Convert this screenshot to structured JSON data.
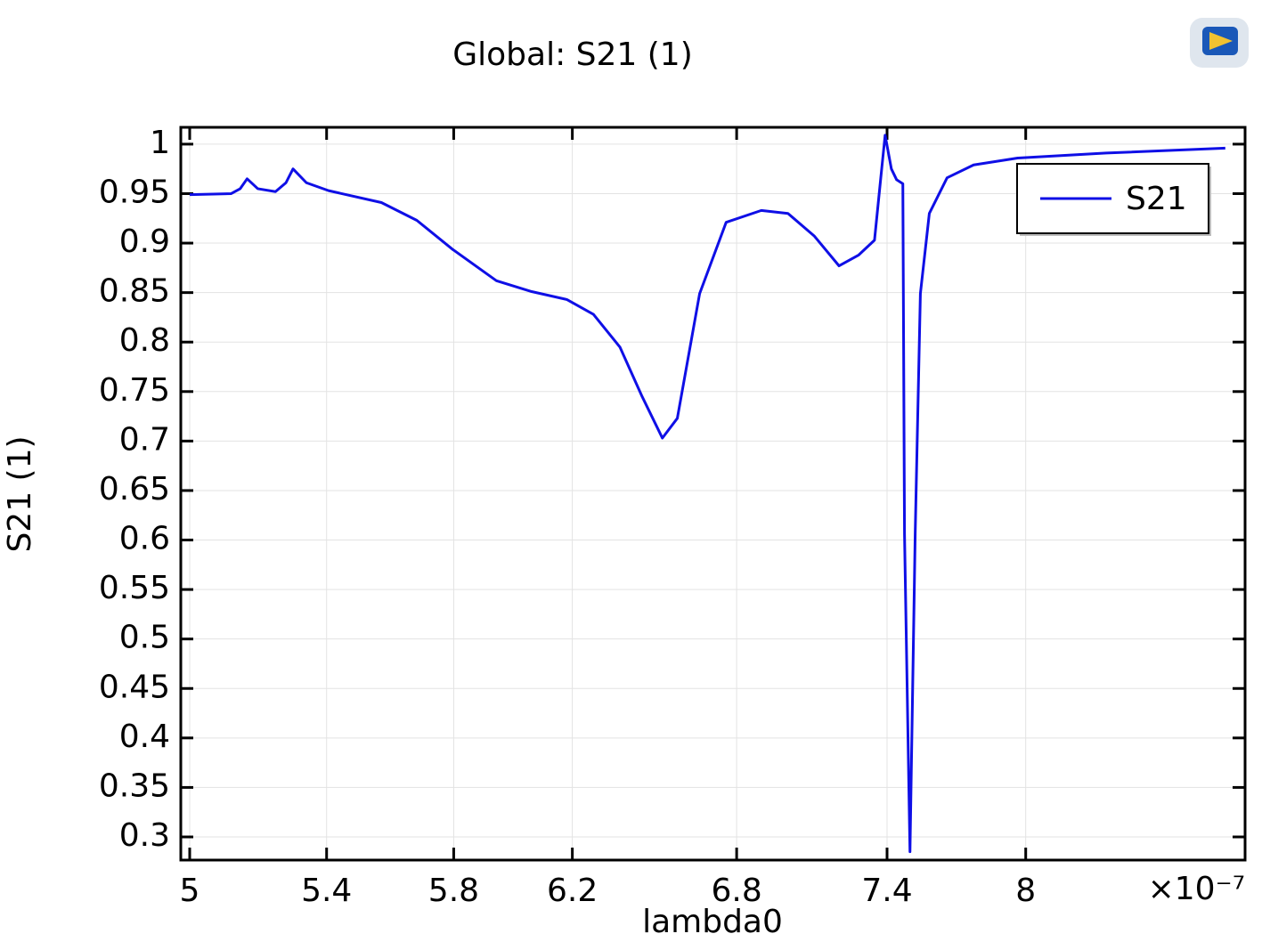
{
  "chart_data": {
    "type": "line",
    "title": "Global: S21 (1)",
    "x_label": "lambda0",
    "y_label": "S21 (1)",
    "x_multiplier": "×10⁻⁷",
    "xscale": "log",
    "grid": true,
    "legend": "upper right",
    "x": [
      5e-07,
      5.118e-07,
      5.144e-07,
      5.164e-07,
      5.195e-07,
      5.247e-07,
      5.278e-07,
      5.299e-07,
      5.339e-07,
      5.406e-07,
      5.569e-07,
      5.681e-07,
      5.795e-07,
      5.941e-07,
      6.06e-07,
      6.181e-07,
      6.274e-07,
      6.368e-07,
      6.448e-07,
      6.522e-07,
      6.577e-07,
      6.66e-07,
      6.76e-07,
      6.895e-07,
      6.999e-07,
      7.104e-07,
      7.203e-07,
      7.283e-07,
      7.348e-07,
      7.374e-07,
      7.392e-07,
      7.418e-07,
      7.44e-07,
      7.466e-07,
      7.473e-07,
      7.496e-07,
      7.518e-07,
      7.54e-07,
      7.578e-07,
      7.654e-07,
      7.769e-07,
      7.964e-07,
      8.37e-07,
      8.95e-07
    ],
    "series": [
      {
        "name": "S21",
        "color": "#0f0fe6",
        "values": [
          0.949,
          0.95,
          0.955,
          0.965,
          0.955,
          0.952,
          0.961,
          0.975,
          0.961,
          0.953,
          0.941,
          0.923,
          0.894,
          0.862,
          0.851,
          0.843,
          0.828,
          0.795,
          0.745,
          0.703,
          0.723,
          0.849,
          0.921,
          0.933,
          0.93,
          0.907,
          0.877,
          0.888,
          0.903,
          0.966,
          1.009,
          0.975,
          0.964,
          0.96,
          0.606,
          0.285,
          0.606,
          0.849,
          0.93,
          0.966,
          0.979,
          0.986,
          0.991,
          0.996
        ]
      }
    ],
    "xlim": [
      4.975e-07,
      9.05e-07
    ],
    "ylim": [
      0.2766,
      1.017
    ],
    "xticks": [
      {
        "value": 5e-07,
        "label": "5"
      },
      {
        "value": 5.4e-07,
        "label": "5.4"
      },
      {
        "value": 5.8e-07,
        "label": "5.8"
      },
      {
        "value": 6.2e-07,
        "label": "6.2"
      },
      {
        "value": 6.8e-07,
        "label": "6.8"
      },
      {
        "value": 7.4e-07,
        "label": "7.4"
      },
      {
        "value": 8e-07,
        "label": "8"
      }
    ],
    "yticks": [
      0.3,
      0.35,
      0.4,
      0.45,
      0.5,
      0.55,
      0.6,
      0.65,
      0.7,
      0.75,
      0.8,
      0.85,
      0.9,
      0.95,
      1
    ]
  }
}
